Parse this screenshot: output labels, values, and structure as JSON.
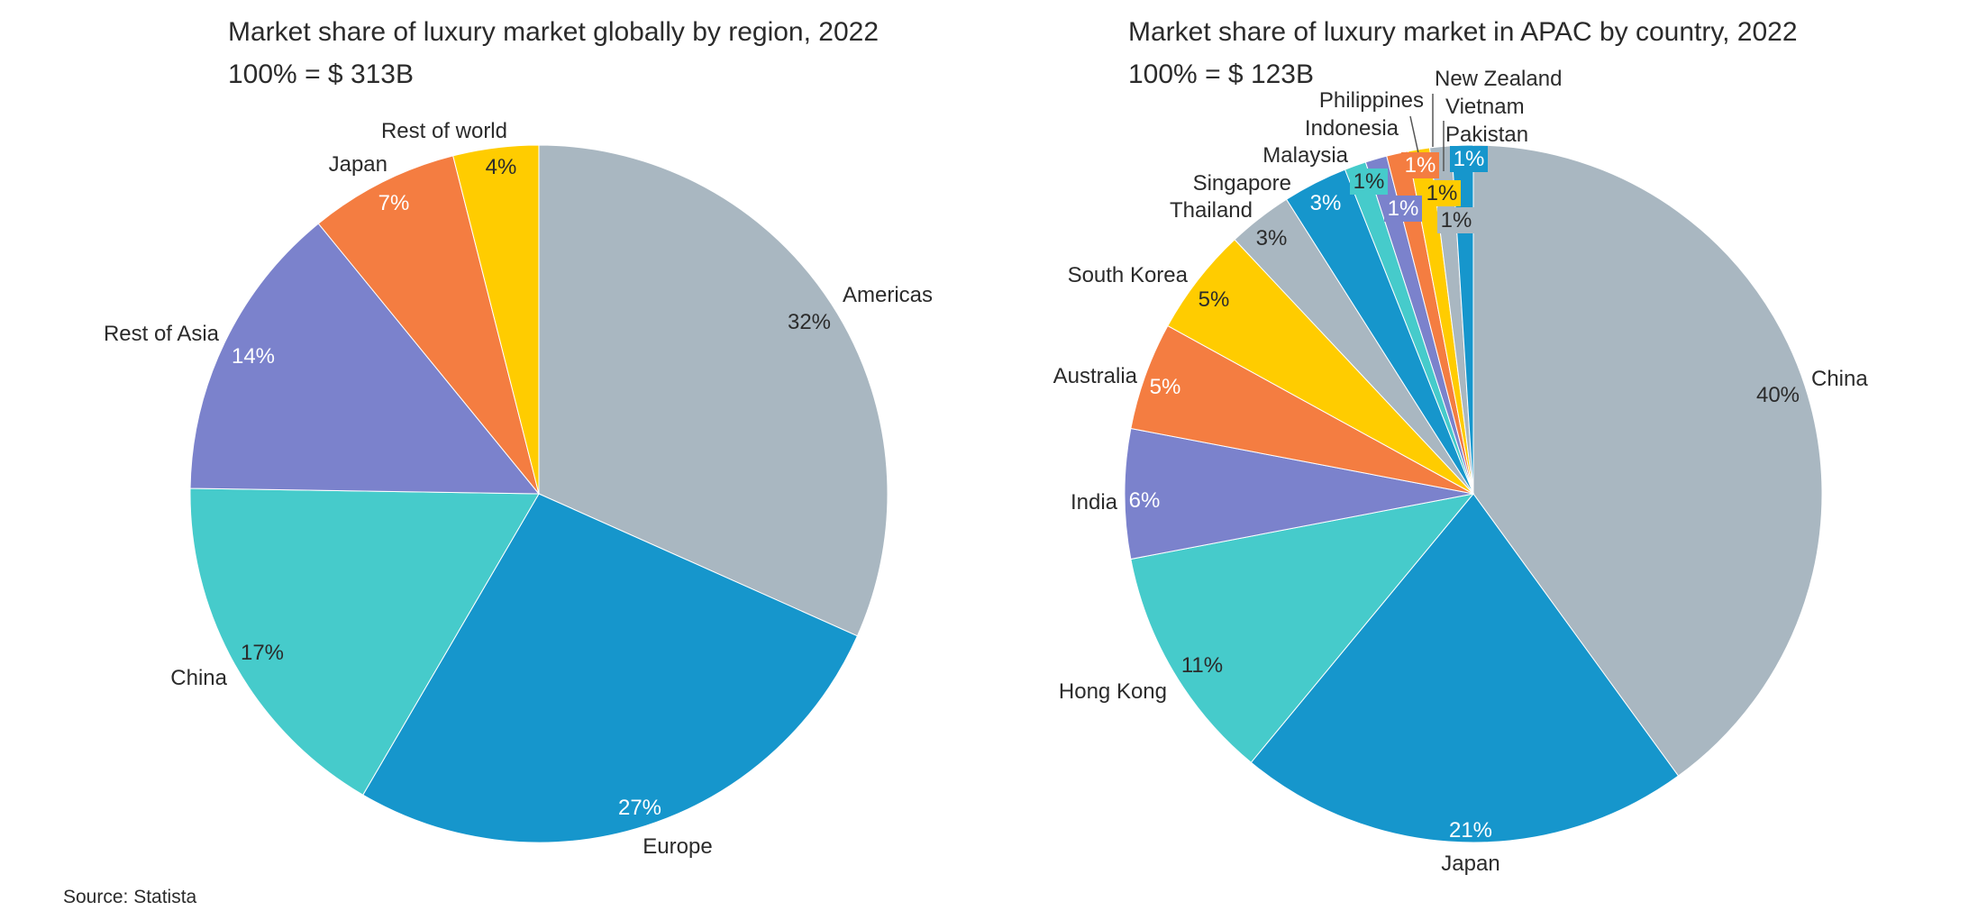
{
  "source": "Source: Statista",
  "chart_data": [
    {
      "type": "pie",
      "title": "Market share of luxury market globally by region, 2022",
      "subtitle": "100% = $ 313B",
      "unit": "%",
      "slices": [
        {
          "label": "Americas",
          "value": 32,
          "value_label": "32%",
          "color": "#a9b7c1"
        },
        {
          "label": "Europe",
          "value": 27,
          "value_label": "27%",
          "color": "#1696cc"
        },
        {
          "label": "China",
          "value": 17,
          "value_label": "17%",
          "color": "#46cbcb"
        },
        {
          "label": "Rest of Asia",
          "value": 14,
          "value_label": "14%",
          "color": "#7b82cc"
        },
        {
          "label": "Japan",
          "value": 7,
          "value_label": "7%",
          "color": "#f47d41"
        },
        {
          "label": "Rest of world",
          "value": 4,
          "value_label": "4%",
          "color": "#ffcc00"
        }
      ]
    },
    {
      "type": "pie",
      "title": "Market share of luxury market in APAC by country, 2022",
      "subtitle": "100% = $ 123B",
      "unit": "%",
      "slices": [
        {
          "label": "China",
          "value": 40,
          "value_label": "40%",
          "color": "#a9b7c1"
        },
        {
          "label": "Japan",
          "value": 21,
          "value_label": "21%",
          "color": "#1696cc"
        },
        {
          "label": "Hong Kong",
          "value": 11,
          "value_label": "11%",
          "color": "#46cbcb"
        },
        {
          "label": "India",
          "value": 6,
          "value_label": "6%",
          "color": "#7b82cc"
        },
        {
          "label": "Australia",
          "value": 5,
          "value_label": "5%",
          "color": "#f47d41"
        },
        {
          "label": "South Korea",
          "value": 5,
          "value_label": "5%",
          "color": "#ffcc00"
        },
        {
          "label": "Thailand",
          "value": 3,
          "value_label": "3%",
          "color": "#a9b7c1"
        },
        {
          "label": "Singapore",
          "value": 3,
          "value_label": "3%",
          "color": "#1696cc"
        },
        {
          "label": "Malaysia",
          "value": 1,
          "value_label": "1%",
          "color": "#46cbcb"
        },
        {
          "label": "Indonesia",
          "value": 1,
          "value_label": "1%",
          "color": "#7b82cc"
        },
        {
          "label": "Philippines",
          "value": 1,
          "value_label": "1%",
          "color": "#f47d41"
        },
        {
          "label": "New Zealand",
          "value": 1,
          "value_label": "1%",
          "color": "#ffcc00"
        },
        {
          "label": "Vietnam",
          "value": 1,
          "value_label": "1%",
          "color": "#a9b7c1"
        },
        {
          "label": "Pakistan",
          "value": 1,
          "value_label": "1%",
          "color": "#1696cc"
        }
      ]
    }
  ]
}
